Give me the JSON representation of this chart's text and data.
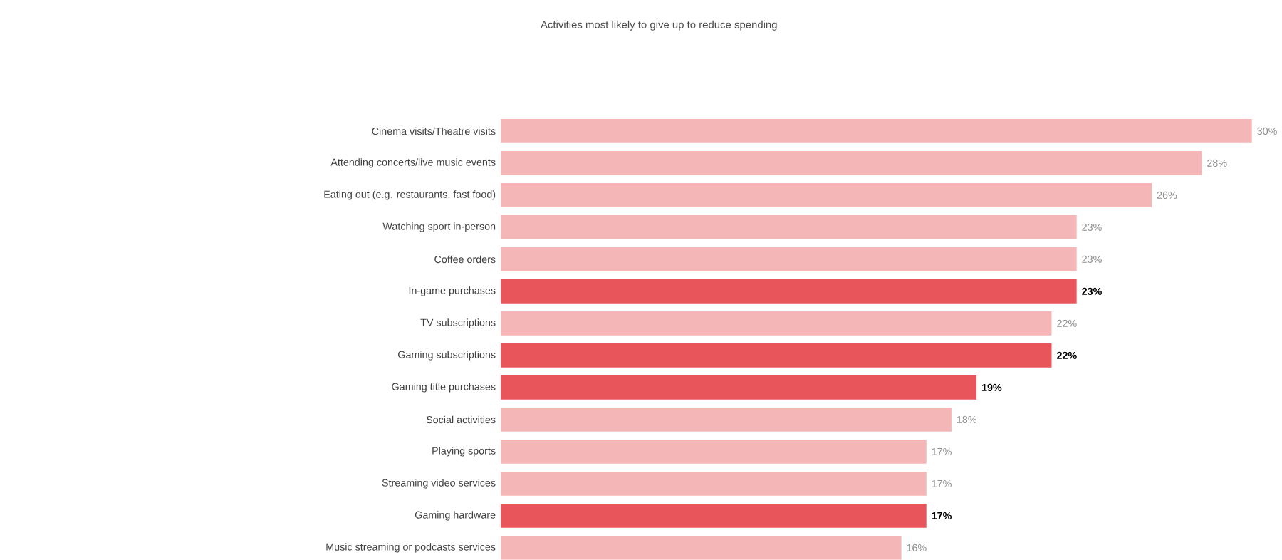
{
  "chart_data": {
    "type": "bar",
    "orientation": "horizontal",
    "title": "Activities most likely to give up to reduce spending",
    "categories": [
      "Cinema visits/Theatre visits",
      "Attending concerts/live music events",
      "Eating out (e.g. restaurants, fast food)",
      "Watching sport in-person",
      "Coffee orders",
      "In-game purchases",
      "TV subscriptions",
      "Gaming subscriptions",
      "Gaming title purchases",
      "Social activities",
      "Playing sports",
      "Streaming video services",
      "Gaming hardware",
      "Music streaming or podcasts services"
    ],
    "values": [
      30,
      28,
      26,
      23,
      23,
      23,
      22,
      22,
      19,
      18,
      17,
      17,
      17,
      16
    ],
    "colors": [
      "#f4b6b6",
      "#f4b6b6",
      "#f4b6b6",
      "#f4b6b6",
      "#f4b6b6",
      "#e8555a",
      "#f4b6b6",
      "#e8555a",
      "#e8555a",
      "#f4b6b6",
      "#f4b6b6",
      "#f4b6b6",
      "#e8555a",
      "#f4b6b6"
    ],
    "value_labels": [
      "30%",
      "28%",
      "26%",
      "23%",
      "23%",
      "23%",
      "22%",
      "22%",
      "19%",
      "18%",
      "17%",
      "17%",
      "17%",
      "16%"
    ]
  }
}
